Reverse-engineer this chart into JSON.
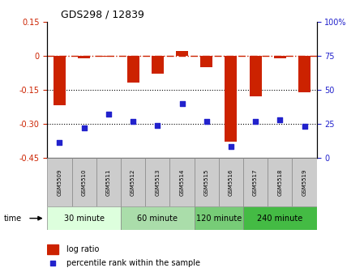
{
  "title": "GDS298 / 12839",
  "samples": [
    "GSM5509",
    "GSM5510",
    "GSM5511",
    "GSM5512",
    "GSM5513",
    "GSM5514",
    "GSM5515",
    "GSM5516",
    "GSM5517",
    "GSM5518",
    "GSM5519"
  ],
  "log_ratio": [
    -0.22,
    -0.01,
    -0.005,
    -0.12,
    -0.08,
    0.02,
    -0.05,
    -0.38,
    -0.18,
    -0.01,
    -0.16
  ],
  "percentile_rank": [
    11,
    22,
    32,
    27,
    24,
    40,
    27,
    8,
    27,
    28,
    23
  ],
  "ylim_left": [
    -0.45,
    0.15
  ],
  "ylim_right": [
    0,
    100
  ],
  "yticks_left": [
    0.15,
    0,
    -0.15,
    -0.3,
    -0.45
  ],
  "yticks_right": [
    100,
    75,
    50,
    25,
    0
  ],
  "hlines": [
    -0.15,
    -0.3
  ],
  "bar_color": "#cc2200",
  "scatter_color": "#2222cc",
  "bar_width": 0.5,
  "groups": [
    {
      "label": "30 minute",
      "start": 0,
      "end": 3,
      "color": "#ddffdd"
    },
    {
      "label": "60 minute",
      "start": 3,
      "end": 6,
      "color": "#aaddaa"
    },
    {
      "label": "120 minute",
      "start": 6,
      "end": 8,
      "color": "#77cc77"
    },
    {
      "label": "240 minute",
      "start": 8,
      "end": 11,
      "color": "#44bb44"
    }
  ],
  "time_label": "time",
  "legend_bar_label": "log ratio",
  "legend_scatter_label": "percentile rank within the sample",
  "tick_label_color_left": "#cc2200",
  "tick_label_color_right": "#2222cc",
  "sample_box_color": "#cccccc",
  "spine_color": "#000000"
}
